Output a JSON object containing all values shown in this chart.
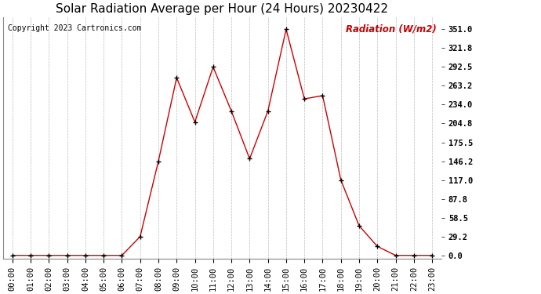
{
  "title": "Solar Radiation Average per Hour (24 Hours) 20230422",
  "copyright": "Copyright 2023 Cartronics.com",
  "ylabel": "Radiation (W/m2)",
  "hours": [
    "00:00",
    "01:00",
    "02:00",
    "03:00",
    "04:00",
    "05:00",
    "06:00",
    "07:00",
    "08:00",
    "09:00",
    "10:00",
    "11:00",
    "12:00",
    "13:00",
    "14:00",
    "15:00",
    "16:00",
    "17:00",
    "18:00",
    "19:00",
    "20:00",
    "21:00",
    "22:00",
    "23:00"
  ],
  "values": [
    0.0,
    0.0,
    0.0,
    0.0,
    0.0,
    0.0,
    0.0,
    29.2,
    146.2,
    275.8,
    207.0,
    292.5,
    224.0,
    150.0,
    224.0,
    351.0,
    243.0,
    248.0,
    117.0,
    46.0,
    14.0,
    0.0,
    0.0,
    0.0
  ],
  "line_color": "#cc0000",
  "marker_color": "#000000",
  "background_color": "#ffffff",
  "grid_color": "#aaaaaa",
  "title_color": "#000000",
  "ylabel_color": "#cc0000",
  "copyright_color": "#000000",
  "yticks": [
    0.0,
    29.2,
    58.5,
    87.8,
    117.0,
    146.2,
    175.5,
    204.8,
    234.0,
    263.2,
    292.5,
    321.8,
    351.0
  ],
  "ylim": [
    -5,
    370
  ],
  "title_fontsize": 11,
  "axis_fontsize": 7.5,
  "label_fontsize": 8.5,
  "copyright_fontsize": 7
}
